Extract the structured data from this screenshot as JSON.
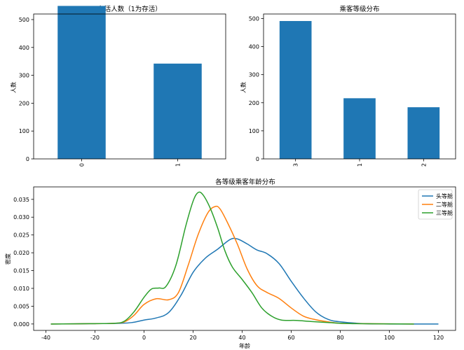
{
  "chart_data": [
    {
      "type": "bar",
      "title": "存活人数（1为存活）",
      "ylabel": "人数",
      "xlabel": "",
      "categories": [
        "0",
        "1"
      ],
      "values": [
        549,
        342
      ],
      "ylim": [
        0,
        520
      ],
      "yticks": [
        "0",
        "100",
        "200",
        "300",
        "400",
        "500"
      ],
      "color": "#1f77b4",
      "grid": false
    },
    {
      "type": "bar",
      "title": "乘客等级分布",
      "ylabel": "人数",
      "xlabel": "",
      "categories": [
        "3",
        "1",
        "2"
      ],
      "values": [
        491,
        216,
        184
      ],
      "ylim": [
        0,
        516
      ],
      "yticks": [
        "0",
        "100",
        "200",
        "300",
        "400",
        "500"
      ],
      "color": "#1f77b4",
      "grid": false
    },
    {
      "type": "line",
      "title": "各等级乘客年龄分布",
      "xlabel": "年龄",
      "ylabel": "密度",
      "xlim": [
        -45,
        127
      ],
      "ylim": [
        -0.0018,
        0.0385
      ],
      "xticks": [
        "-40",
        "-20",
        "0",
        "20",
        "40",
        "60",
        "80",
        "100",
        "120"
      ],
      "yticks": [
        "0.000",
        "0.005",
        "0.010",
        "0.015",
        "0.020",
        "0.025",
        "0.030",
        "0.035"
      ],
      "legend_position": "top-right",
      "grid": false,
      "series": [
        {
          "name": "头等舱",
          "color": "#1f77b4",
          "points": [
            [
              -38,
              0
            ],
            [
              -20,
              0.0001
            ],
            [
              -10,
              0.0002
            ],
            [
              -5,
              0.0004
            ],
            [
              0,
              0.0011
            ],
            [
              5,
              0.0017
            ],
            [
              10,
              0.0032
            ],
            [
              15,
              0.008
            ],
            [
              20,
              0.0145
            ],
            [
              25,
              0.0185
            ],
            [
              30,
              0.021
            ],
            [
              35,
              0.0237
            ],
            [
              38,
              0.0239
            ],
            [
              42,
              0.0225
            ],
            [
              46,
              0.0208
            ],
            [
              50,
              0.0198
            ],
            [
              55,
              0.017
            ],
            [
              60,
              0.012
            ],
            [
              65,
              0.0073
            ],
            [
              70,
              0.0034
            ],
            [
              75,
              0.0013
            ],
            [
              80,
              0.0006
            ],
            [
              90,
              0.0001
            ],
            [
              100,
              0
            ],
            [
              120,
              0
            ]
          ]
        },
        {
          "name": "二等舱",
          "color": "#ff7f0e",
          "points": [
            [
              -38,
              0
            ],
            [
              -20,
              0.0001
            ],
            [
              -12,
              0.0002
            ],
            [
              -8,
              0.0006
            ],
            [
              -4,
              0.0025
            ],
            [
              0,
              0.0055
            ],
            [
              5,
              0.0071
            ],
            [
              10,
              0.0068
            ],
            [
              14,
              0.0088
            ],
            [
              18,
              0.0165
            ],
            [
              22,
              0.025
            ],
            [
              26,
              0.0312
            ],
            [
              29,
              0.033
            ],
            [
              31,
              0.0323
            ],
            [
              34,
              0.0285
            ],
            [
              38,
              0.0225
            ],
            [
              42,
              0.0155
            ],
            [
              46,
              0.0108
            ],
            [
              50,
              0.0089
            ],
            [
              55,
              0.0072
            ],
            [
              60,
              0.0045
            ],
            [
              65,
              0.0022
            ],
            [
              70,
              0.0012
            ],
            [
              75,
              0.0006
            ],
            [
              80,
              0.0002
            ],
            [
              90,
              0.0001
            ],
            [
              110,
              0
            ]
          ]
        },
        {
          "name": "三等舱",
          "color": "#2ca02c",
          "points": [
            [
              -38,
              0
            ],
            [
              -20,
              0.0001
            ],
            [
              -12,
              0.0002
            ],
            [
              -8,
              0.0008
            ],
            [
              -4,
              0.0035
            ],
            [
              0,
              0.0075
            ],
            [
              3,
              0.0098
            ],
            [
              6,
              0.0101
            ],
            [
              9,
              0.0106
            ],
            [
              13,
              0.0165
            ],
            [
              17,
              0.0275
            ],
            [
              20,
              0.0345
            ],
            [
              22,
              0.0369
            ],
            [
              24,
              0.0363
            ],
            [
              27,
              0.0325
            ],
            [
              30,
              0.027
            ],
            [
              33,
              0.0205
            ],
            [
              36,
              0.016
            ],
            [
              40,
              0.0125
            ],
            [
              44,
              0.0088
            ],
            [
              48,
              0.0045
            ],
            [
              52,
              0.0022
            ],
            [
              56,
              0.0011
            ],
            [
              62,
              0.001
            ],
            [
              68,
              0.0007
            ],
            [
              75,
              0.0004
            ],
            [
              85,
              0.0001
            ],
            [
              110,
              0
            ]
          ]
        }
      ]
    }
  ]
}
